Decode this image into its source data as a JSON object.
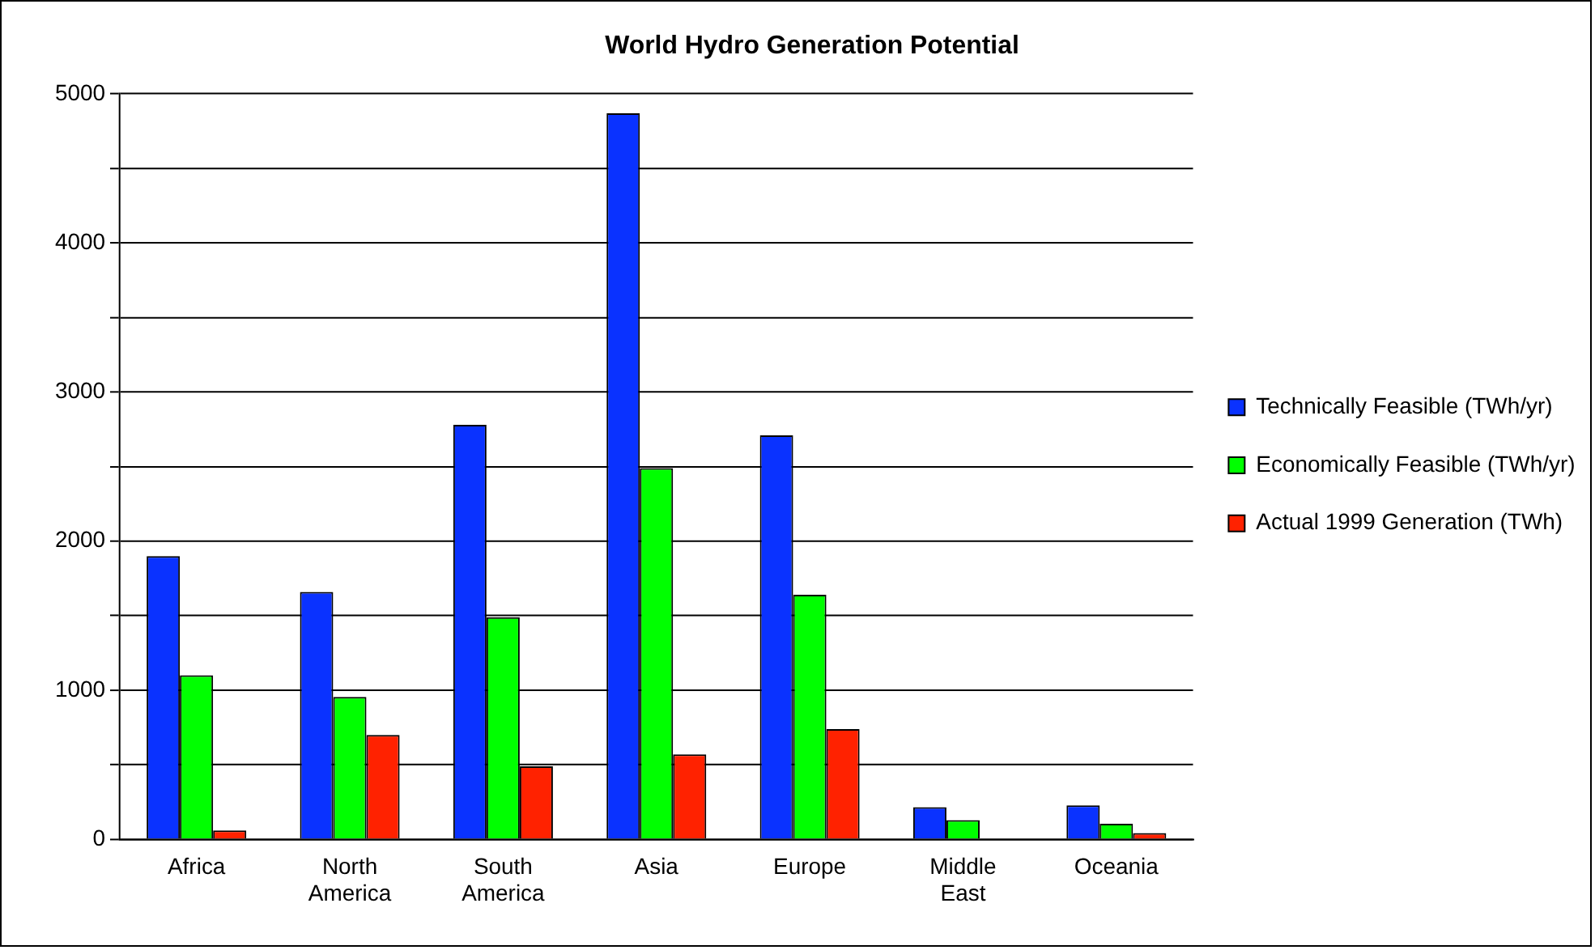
{
  "chart_data": {
    "type": "bar",
    "title": "World Hydro Generation Potential",
    "categories": [
      "Africa",
      "North America",
      "South America",
      "Asia",
      "Europe",
      "Middle East",
      "Oceania"
    ],
    "series": [
      {
        "name": "Technically Feasible (TWh/yr)",
        "color": "#0a32ff",
        "values": [
          1900,
          1660,
          2780,
          4870,
          2710,
          216,
          228
        ]
      },
      {
        "name": "Economically Feasible (TWh/yr)",
        "color": "#00ff00",
        "values": [
          1100,
          955,
          1490,
          2490,
          1640,
          129,
          104
        ]
      },
      {
        "name": "Actual 1999 Generation (TWh)",
        "color": "#ff2200",
        "values": [
          60,
          700,
          490,
          570,
          740,
          null,
          42
        ]
      }
    ],
    "ylim": [
      0,
      5000
    ],
    "yticks": [
      0,
      {
        "value": 500,
        "label": null
      },
      1000,
      {
        "value": 1500,
        "label": null
      },
      2000,
      {
        "value": 2500,
        "label": null
      },
      3000,
      {
        "value": 3500,
        "label": null
      },
      4000,
      {
        "value": 4500,
        "label": null
      },
      5000
    ],
    "grid": "y",
    "legend": "right"
  }
}
